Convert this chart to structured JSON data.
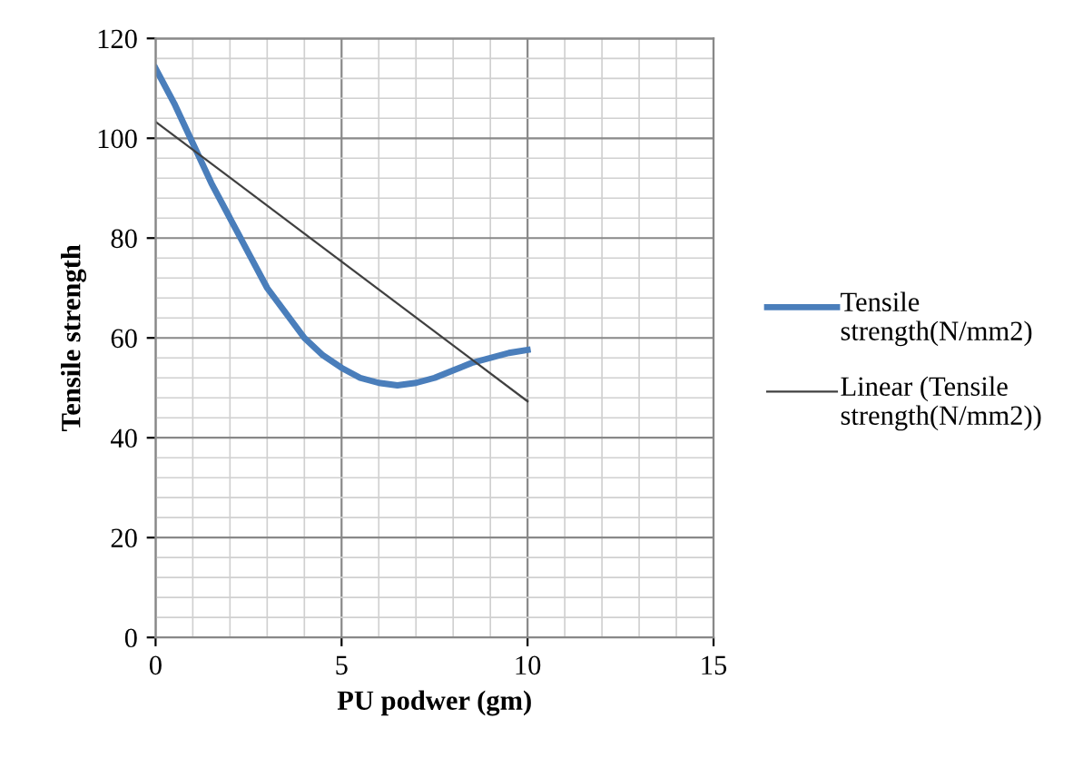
{
  "chart_data": {
    "type": "line",
    "xlabel": "PU podwer (gm)",
    "ylabel": "Tensile strength",
    "xlim": [
      0,
      15
    ],
    "xticks": [
      0,
      5,
      10,
      15
    ],
    "ylim": [
      0,
      120
    ],
    "yticks": [
      0,
      20,
      40,
      60,
      80,
      100,
      120
    ],
    "grid": true,
    "legend": "right",
    "marker": "none",
    "series": [
      {
        "name": "Tensile strength(N/mm2)",
        "color": "#4a7ebb",
        "x": [
          0,
          0.5,
          1,
          1.5,
          2,
          2.5,
          3,
          3.5,
          4,
          4.5,
          5,
          5.5,
          6,
          6.5,
          7,
          7.5,
          8,
          8.5,
          9,
          9.5,
          10
        ],
        "values": [
          114,
          107,
          99,
          91,
          84,
          77,
          70,
          65,
          60,
          56.5,
          54,
          52,
          51,
          50.5,
          51,
          52,
          53.5,
          55,
          56,
          57,
          57.6
        ]
      },
      {
        "name": "Linear (Tensile strength(N/mm2))",
        "color": "#404040",
        "x": [
          0,
          10
        ],
        "values": [
          103.3,
          47.3
        ]
      }
    ]
  }
}
